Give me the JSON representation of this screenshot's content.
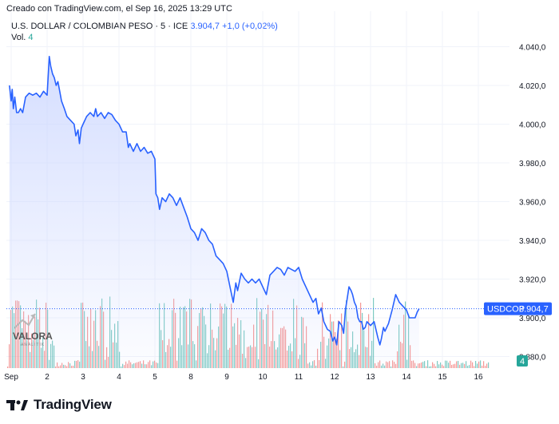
{
  "header": {
    "credit": "Creado con TradingView.com, el Sep 16, 2025 13:29 UTC",
    "symbol": "U.S. DOLLAR / COLOMBIAN PESO · 5 · ICE",
    "last": "3.904,7",
    "change": "+1,0 (+0,02%)",
    "vol_label": "Vol.",
    "vol_value": "4"
  },
  "price_tag": {
    "ticker": "USDCOP",
    "value": "3.904,7"
  },
  "vol_tag": "4",
  "brand": {
    "name": "TradingView"
  },
  "watermark": {
    "name": "VALORA",
    "sub": "ANALITIK"
  },
  "colors": {
    "line": "#2962ff",
    "area_top": "#c7d3ff",
    "vol_up": "#26a69a",
    "vol_down": "#ef5350",
    "grid": "#f0f3fa",
    "axis_text": "#131722"
  },
  "chart_data": {
    "type": "line",
    "title": "U.S. DOLLAR / COLOMBIAN PESO · 5 · ICE",
    "ylim": [
      3874,
      4046
    ],
    "y_ticks": [
      {
        "value": 4040,
        "label": "4.040,0"
      },
      {
        "value": 4020,
        "label": "4.020,0"
      },
      {
        "value": 4000,
        "label": "4.000,0"
      },
      {
        "value": 3980,
        "label": "3.980,0"
      },
      {
        "value": 3960,
        "label": "3.960,0"
      },
      {
        "value": 3940,
        "label": "3.940,0"
      },
      {
        "value": 3920,
        "label": "3.920,0"
      },
      {
        "value": 3900,
        "label": "3.900,0"
      },
      {
        "value": 3880,
        "label": "3.880,0"
      }
    ],
    "x_ticks": [
      {
        "t": 0,
        "label": "Sep"
      },
      {
        "t": 10,
        "label": "2"
      },
      {
        "t": 20,
        "label": "3"
      },
      {
        "t": 30,
        "label": "4"
      },
      {
        "t": 40,
        "label": "5"
      },
      {
        "t": 50,
        "label": "8"
      },
      {
        "t": 60,
        "label": "9"
      },
      {
        "t": 70,
        "label": "10"
      },
      {
        "t": 80,
        "label": "11"
      },
      {
        "t": 90,
        "label": "12"
      },
      {
        "t": 100,
        "label": "13"
      },
      {
        "t": 110,
        "label": "14"
      },
      {
        "t": 120,
        "label": "15"
      },
      {
        "t": 130,
        "label": "16"
      }
    ],
    "series": [
      {
        "name": "USDCOP",
        "points": [
          [
            -0.5,
            4020
          ],
          [
            0,
            4012
          ],
          [
            0.3,
            4018
          ],
          [
            0.6,
            4008
          ],
          [
            1,
            4014
          ],
          [
            1.5,
            4006
          ],
          [
            2,
            4006
          ],
          [
            2.6,
            4008
          ],
          [
            3.2,
            4006
          ],
          [
            4,
            4014
          ],
          [
            5,
            4016
          ],
          [
            6,
            4015
          ],
          [
            7,
            4016
          ],
          [
            8,
            4014
          ],
          [
            9,
            4017
          ],
          [
            10,
            4015
          ],
          [
            10.6,
            4035
          ],
          [
            11,
            4030
          ],
          [
            11.5,
            4026
          ],
          [
            12,
            4024
          ],
          [
            12.5,
            4020
          ],
          [
            13,
            4022
          ],
          [
            13.5,
            4017
          ],
          [
            14,
            4012
          ],
          [
            14.8,
            4008
          ],
          [
            15.5,
            4004
          ],
          [
            16.5,
            4002
          ],
          [
            17.5,
            4000
          ],
          [
            18,
            3994
          ],
          [
            18.6,
            3997
          ],
          [
            19,
            3990
          ],
          [
            19.5,
            3998
          ],
          [
            20,
            4000
          ],
          [
            21,
            4004
          ],
          [
            22,
            4006
          ],
          [
            23,
            4004
          ],
          [
            23.5,
            4008
          ],
          [
            24,
            4004
          ],
          [
            25,
            4006
          ],
          [
            26,
            4003
          ],
          [
            27,
            4006
          ],
          [
            28,
            4005
          ],
          [
            29,
            4002
          ],
          [
            30,
            4000
          ],
          [
            31,
            3996
          ],
          [
            32,
            3996
          ],
          [
            32.6,
            3988
          ],
          [
            33,
            3990
          ],
          [
            34,
            3986
          ],
          [
            35,
            3990
          ],
          [
            36,
            3986
          ],
          [
            37,
            3988
          ],
          [
            38,
            3985
          ],
          [
            39,
            3986
          ],
          [
            40,
            3982
          ],
          [
            40.3,
            3964
          ],
          [
            40.8,
            3962
          ],
          [
            41.3,
            3956
          ],
          [
            42,
            3962
          ],
          [
            43,
            3960
          ],
          [
            44,
            3964
          ],
          [
            45,
            3962
          ],
          [
            46,
            3958
          ],
          [
            47,
            3962
          ],
          [
            48,
            3957
          ],
          [
            49,
            3952
          ],
          [
            50,
            3946
          ],
          [
            51,
            3944
          ],
          [
            52,
            3940
          ],
          [
            53,
            3946
          ],
          [
            54,
            3944
          ],
          [
            55,
            3940
          ],
          [
            56,
            3938
          ],
          [
            57,
            3932
          ],
          [
            58,
            3930
          ],
          [
            59,
            3928
          ],
          [
            60,
            3924
          ],
          [
            61,
            3915
          ],
          [
            61.8,
            3908
          ],
          [
            62.5,
            3918
          ],
          [
            63,
            3914
          ],
          [
            64,
            3923
          ],
          [
            65,
            3920
          ],
          [
            66,
            3918
          ],
          [
            67,
            3920
          ],
          [
            68,
            3918
          ],
          [
            69,
            3920
          ],
          [
            70,
            3916
          ],
          [
            71,
            3912
          ],
          [
            72,
            3922
          ],
          [
            73,
            3924
          ],
          [
            74,
            3926
          ],
          [
            75,
            3925
          ],
          [
            76,
            3922
          ],
          [
            77,
            3926
          ],
          [
            78,
            3925
          ],
          [
            79,
            3924
          ],
          [
            80,
            3926
          ],
          [
            81,
            3920
          ],
          [
            82,
            3916
          ],
          [
            83,
            3912
          ],
          [
            84,
            3908
          ],
          [
            84.8,
            3910
          ],
          [
            85.5,
            3902
          ],
          [
            86.3,
            3905
          ],
          [
            87,
            3898
          ],
          [
            88,
            3894
          ],
          [
            88.8,
            3893
          ],
          [
            89.5,
            3888
          ],
          [
            90,
            3890
          ],
          [
            90.6,
            3886
          ],
          [
            91.2,
            3898
          ],
          [
            92,
            3896
          ],
          [
            92.5,
            3892
          ],
          [
            93,
            3904
          ],
          [
            93.5,
            3910
          ],
          [
            94,
            3916
          ],
          [
            94.6,
            3914
          ],
          [
            95,
            3912
          ],
          [
            95.5,
            3908
          ],
          [
            96,
            3906
          ],
          [
            96.5,
            3900
          ],
          [
            97,
            3898
          ],
          [
            97.5,
            3898
          ],
          [
            98,
            3894
          ],
          [
            98.5,
            3895
          ],
          [
            99,
            3898
          ],
          [
            100,
            3896
          ],
          [
            101,
            3898
          ],
          [
            102,
            3890
          ],
          [
            102.6,
            3886
          ],
          [
            103,
            3889
          ],
          [
            103.6,
            3895
          ],
          [
            104,
            3893
          ],
          [
            105,
            3897
          ],
          [
            106,
            3904
          ],
          [
            107,
            3912
          ],
          [
            108,
            3908
          ],
          [
            109,
            3906
          ],
          [
            110,
            3904
          ],
          [
            110.8,
            3900
          ],
          [
            111.6,
            3900
          ],
          [
            112.4,
            3900
          ],
          [
            113,
            3903
          ],
          [
            113.5,
            3904.7
          ]
        ]
      }
    ]
  }
}
